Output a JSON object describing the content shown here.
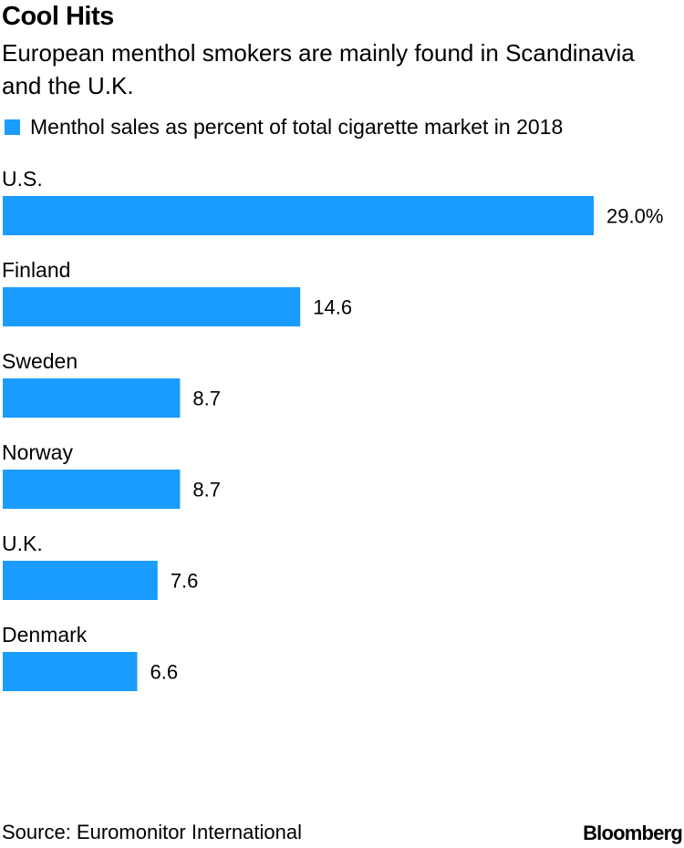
{
  "chart_data": {
    "type": "bar",
    "orientation": "horizontal",
    "title": "Cool Hits",
    "subtitle": "European menthol smokers are mainly found in Scandinavia and the U.K.",
    "categories": [
      "U.S.",
      "Finland",
      "Sweden",
      "Norway",
      "U.K.",
      "Denmark"
    ],
    "series": [
      {
        "name": "Menthol sales as percent of total cigarette market in 2018",
        "values": [
          29.0,
          14.6,
          8.7,
          8.7,
          7.6,
          6.6
        ],
        "labels": [
          "29.0%",
          "14.6",
          "8.7",
          "8.7",
          "7.6",
          "6.6"
        ]
      }
    ],
    "xlim": [
      0,
      29.0
    ],
    "grid": false,
    "legend_position": "top-left",
    "colors": {
      "bar": "#1a9cff",
      "text": "#000000"
    }
  },
  "footer": {
    "source": "Source: Euromonitor International",
    "brand": "Bloomberg"
  }
}
